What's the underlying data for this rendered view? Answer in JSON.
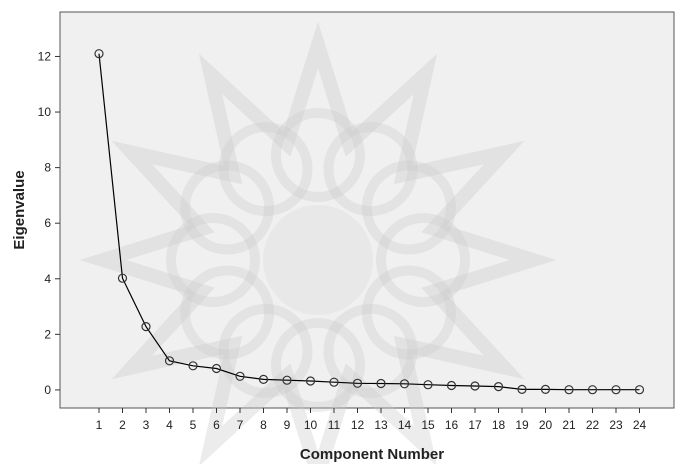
{
  "chart_data": {
    "type": "line",
    "title": "",
    "xlabel": "Component Number",
    "ylabel": "Eigenvalue",
    "x": [
      1,
      2,
      3,
      4,
      5,
      6,
      7,
      8,
      9,
      10,
      11,
      12,
      13,
      14,
      15,
      16,
      17,
      18,
      19,
      20,
      21,
      22,
      23,
      24
    ],
    "series": [
      {
        "values": [
          12.1,
          4.02,
          2.28,
          1.05,
          0.87,
          0.77,
          0.49,
          0.38,
          0.35,
          0.32,
          0.28,
          0.24,
          0.23,
          0.22,
          0.19,
          0.16,
          0.14,
          0.12,
          0.02,
          0.02,
          0.01,
          0.01,
          0.01,
          0.01
        ]
      }
    ],
    "xticks": [
      "1",
      "2",
      "3",
      "4",
      "5",
      "6",
      "7",
      "8",
      "9",
      "10",
      "11",
      "12",
      "13",
      "14",
      "15",
      "16",
      "17",
      "18",
      "19",
      "20",
      "21",
      "22",
      "23",
      "24"
    ],
    "yticks": [
      "0",
      "2",
      "4",
      "6",
      "8",
      "10",
      "12"
    ],
    "ylim": [
      -0.65,
      13.6
    ],
    "grid": false,
    "legend": "none",
    "colors": {
      "plot_background": "#f0f0f0",
      "line": "#000000",
      "marker_stroke": "#333333",
      "watermark": "#c8c8c8"
    }
  }
}
